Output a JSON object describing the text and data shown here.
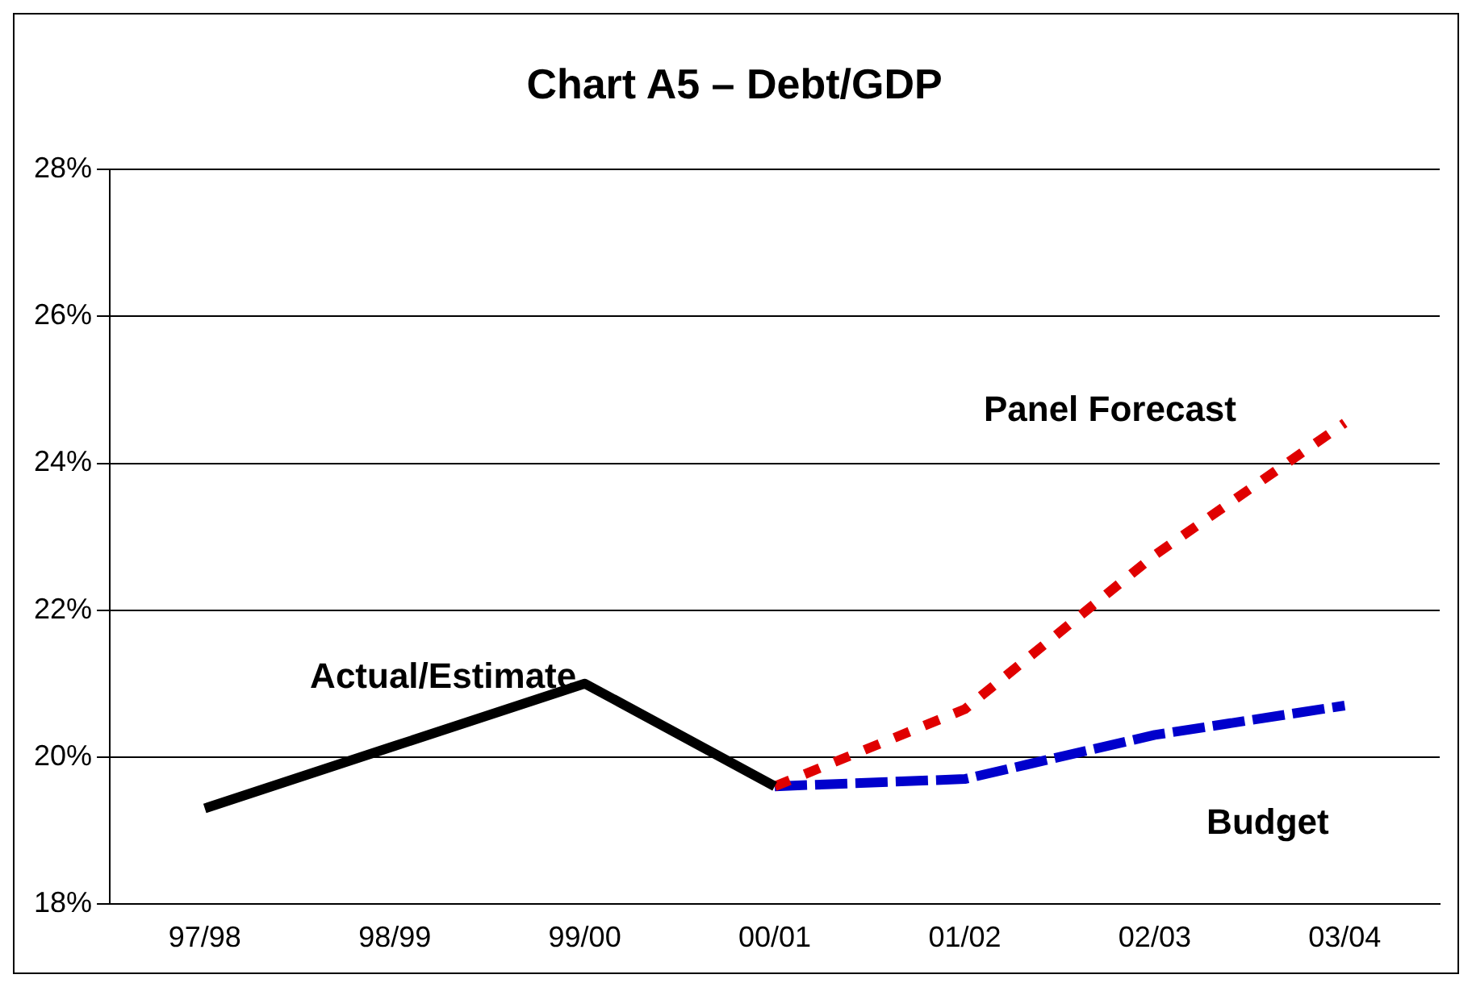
{
  "chart_data": {
    "type": "line",
    "title": "Chart A5 – Debt/GDP",
    "categories": [
      "97/98",
      "98/99",
      "99/00",
      "00/01",
      "01/02",
      "02/03",
      "03/04"
    ],
    "series": [
      {
        "name": "Actual/Estimate",
        "color": "#000000",
        "line_style": "solid",
        "values": [
          19.3,
          20.15,
          21.0,
          19.6,
          null,
          null,
          null
        ]
      },
      {
        "name": "Panel Forecast",
        "color": "#e00000",
        "line_style": "dotted",
        "values": [
          null,
          null,
          null,
          19.6,
          20.65,
          22.75,
          24.55
        ]
      },
      {
        "name": "Budget",
        "color": "#0000cc",
        "line_style": "dashed",
        "values": [
          null,
          null,
          null,
          19.6,
          19.7,
          20.3,
          20.7
        ]
      }
    ],
    "ylim": [
      18,
      28
    ],
    "yticks": [
      {
        "value": 18,
        "label": "18%"
      },
      {
        "value": 20,
        "label": "20%"
      },
      {
        "value": 22,
        "label": "22%"
      },
      {
        "value": 24,
        "label": "24%"
      },
      {
        "value": 26,
        "label": "26%"
      },
      {
        "value": 28,
        "label": "28%"
      }
    ],
    "grid": "y",
    "legend": false,
    "marker": "none"
  }
}
